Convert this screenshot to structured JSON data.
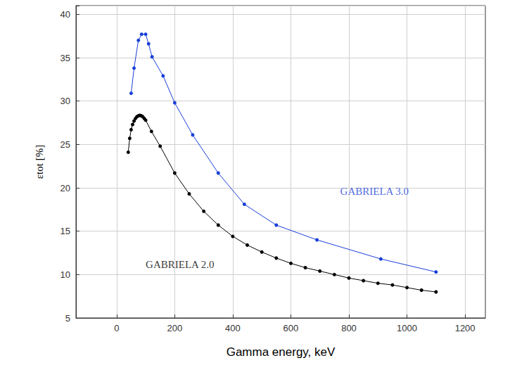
{
  "chart_data": {
    "type": "line",
    "x_label": "Gamma energy, keV",
    "y_label": "εtot [%]",
    "xlim": [
      -140,
      1270
    ],
    "xticks": [
      0,
      200,
      400,
      600,
      800,
      1000,
      1200
    ],
    "ylim": [
      5,
      41
    ],
    "yticks": [
      5,
      10,
      15,
      20,
      25,
      30,
      35,
      40
    ],
    "grid": true,
    "series": [
      {
        "name": "GABRIELA 3.0",
        "color": "#1a3fd8",
        "marker": "circle",
        "line_style": "solid",
        "x": [
          50,
          60,
          75,
          86,
          100,
          110,
          122,
          160,
          200,
          262,
          350,
          440,
          550,
          690,
          910,
          1100
        ],
        "values": [
          30.9,
          33.8,
          37.0,
          37.7,
          37.7,
          36.6,
          35.1,
          32.9,
          29.8,
          26.1,
          21.7,
          18.1,
          15.7,
          14.0,
          11.8,
          10.3
        ]
      },
      {
        "name": "GABRIELA 2.0",
        "color": "#000000",
        "marker": "circle",
        "line_style": "solid",
        "x": [
          40,
          45,
          50,
          55,
          60,
          65,
          70,
          75,
          80,
          85,
          90,
          95,
          100,
          120,
          150,
          200,
          250,
          300,
          350,
          400,
          450,
          500,
          550,
          600,
          650,
          700,
          750,
          800,
          850,
          900,
          950,
          1000,
          1050,
          1100
        ],
        "values": [
          24.1,
          25.7,
          26.7,
          27.3,
          27.7,
          28.0,
          28.2,
          28.3,
          28.35,
          28.3,
          28.2,
          28.0,
          27.8,
          26.5,
          24.8,
          21.7,
          19.3,
          17.3,
          15.7,
          14.4,
          13.4,
          12.6,
          11.9,
          11.3,
          10.8,
          10.4,
          10.0,
          9.6,
          9.3,
          9.0,
          8.8,
          8.5,
          8.2,
          8.0
        ]
      }
    ],
    "annotations": [
      {
        "text": "GABRIELA 3.0",
        "x": 770,
        "y": 19.6,
        "color": "#1a3fd8"
      },
      {
        "text": "GABRIELA 2.0",
        "x": 100,
        "y": 11.2,
        "color": "#000000"
      }
    ]
  }
}
